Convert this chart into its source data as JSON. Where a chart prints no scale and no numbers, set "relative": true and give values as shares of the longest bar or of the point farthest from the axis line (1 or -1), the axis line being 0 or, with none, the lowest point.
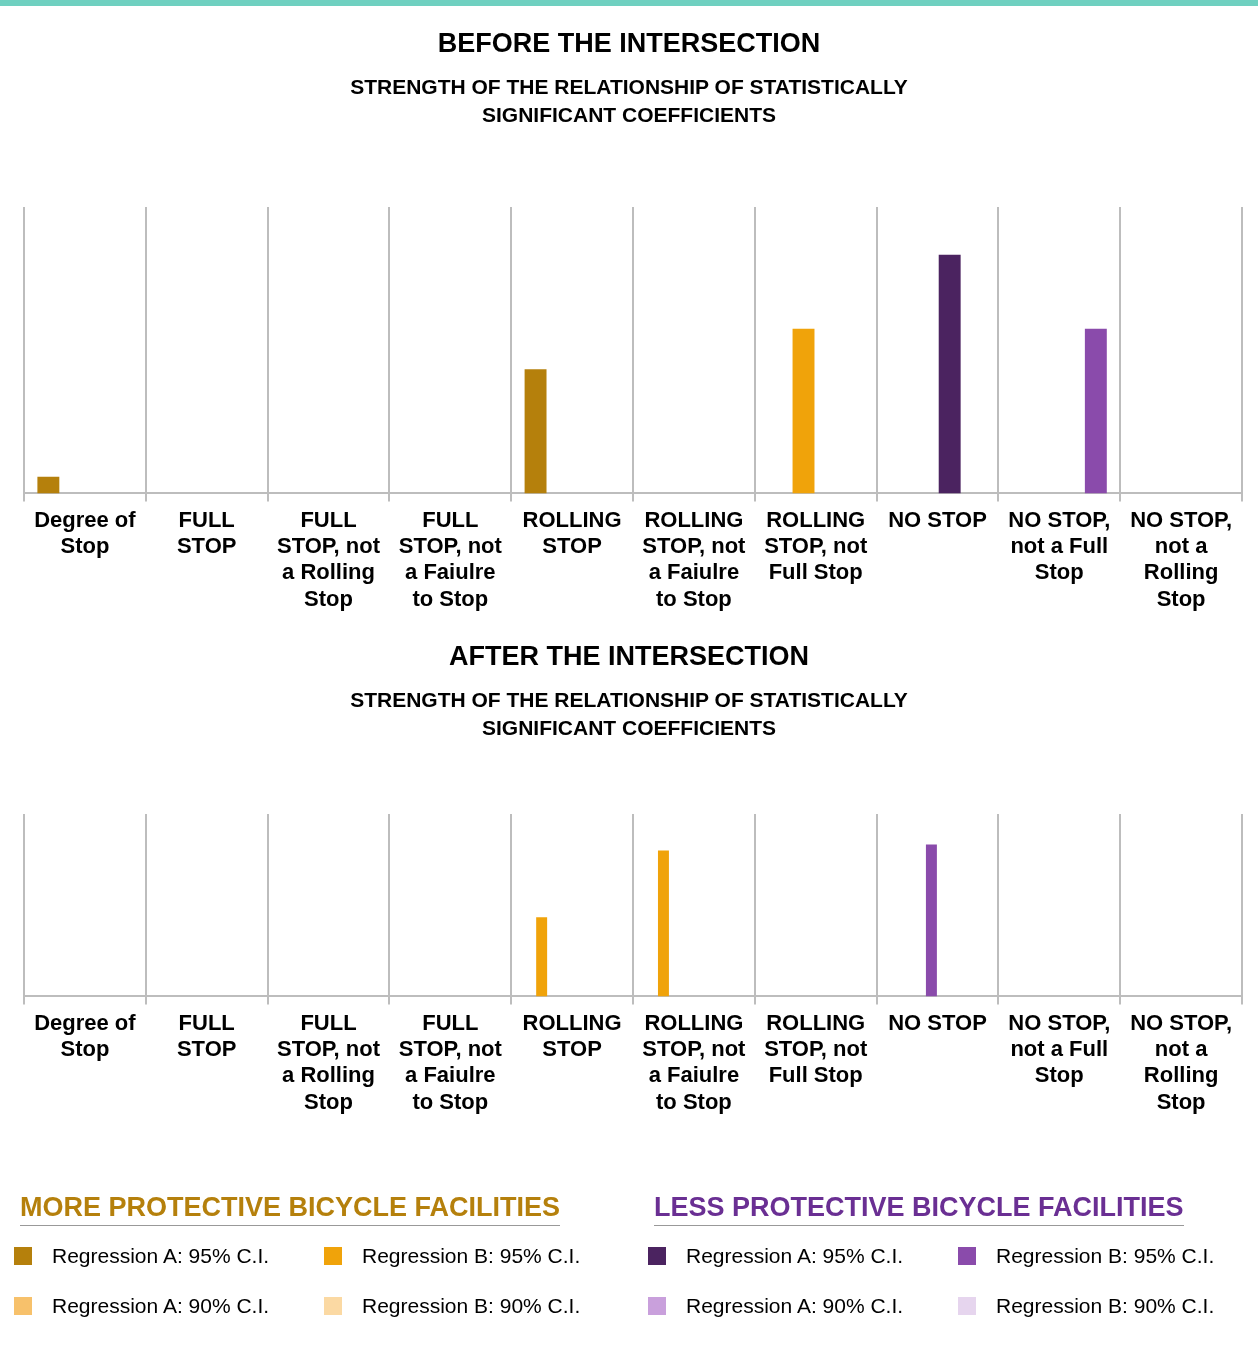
{
  "chart_data": [
    {
      "type": "bar",
      "title": "BEFORE THE INTERSECTION",
      "subtitle": "STRENGTH OF THE RELATIONSHIP OF STATISTICALLY SIGNIFICANT COEFFICIENTS",
      "relative": true,
      "grid": "x",
      "categories": [
        "Degree of Stop",
        "FULL STOP",
        "FULL STOP, not a Rolling Stop",
        "FULL STOP, not a Faiulre to Stop",
        "ROLLING STOP",
        "ROLLING STOP, not a Faiulre to Stop",
        "ROLLING STOP, not Full Stop",
        "NO STOP",
        "NO STOP, not a Full Stop",
        "NO STOP, not a Rolling Stop"
      ],
      "series": [
        {
          "color": "#b5800c",
          "values": [
            0.07,
            null,
            null,
            null,
            0.52,
            null,
            null,
            null,
            null,
            null
          ]
        },
        {
          "color": "#f0a30a",
          "values": [
            null,
            null,
            null,
            null,
            null,
            null,
            0.69,
            null,
            null,
            null
          ]
        },
        {
          "color": "#4b2360",
          "values": [
            null,
            null,
            null,
            null,
            null,
            null,
            null,
            1,
            null,
            null
          ]
        },
        {
          "color": "#8a4bab",
          "values": [
            null,
            null,
            null,
            null,
            null,
            null,
            null,
            null,
            0.69,
            null
          ]
        }
      ]
    },
    {
      "type": "bar",
      "title": "AFTER THE INTERSECTION",
      "subtitle": "STRENGTH OF THE RELATIONSHIP OF STATISTICALLY SIGNIFICANT COEFFICIENTS",
      "relative": true,
      "grid": "x",
      "legend": "bottom",
      "annotations": [
        "MORE PROTECTIVE BICYCLE FACILITIES",
        "LESS PROTECTIVE BICYCLE FACILITIES"
      ],
      "categories": [
        "Degree of Stop",
        "FULL STOP",
        "FULL STOP, not a Rolling Stop",
        "FULL STOP, not a Faiulre to Stop",
        "ROLLING STOP",
        "ROLLING STOP, not a Faiulre to Stop",
        "ROLLING STOP, not Full Stop",
        "NO STOP",
        "NO STOP, not a Full Stop",
        "NO STOP, not a Rolling Stop"
      ],
      "series": [
        {
          "name": "Regression A: 95% C.I.",
          "color": "#b5800c",
          "values": [
            null,
            null,
            null,
            null,
            null,
            null,
            null,
            null,
            null,
            null
          ]
        },
        {
          "name": "Regression B: 95% C.I.",
          "color": "#f0a30a",
          "values": [
            null,
            null,
            null,
            null,
            0.52,
            0.96,
            null,
            null,
            null,
            null
          ]
        },
        {
          "name": "Regression A: 95% C.I.",
          "color": "#4b2360",
          "values": [
            null,
            null,
            null,
            null,
            null,
            null,
            null,
            null,
            null,
            null
          ]
        },
        {
          "name": "Regression B: 95% C.I.",
          "color": "#8a4bab",
          "values": [
            null,
            null,
            null,
            null,
            null,
            null,
            null,
            1,
            null,
            null
          ]
        },
        {
          "name": "Regression A: 90% C.I.",
          "color": "#f7c16b",
          "values": [
            null,
            null,
            null,
            null,
            null,
            null,
            null,
            null,
            null,
            null
          ]
        },
        {
          "name": "Regression B: 90% C.I.",
          "color": "#fbd9a3",
          "values": [
            null,
            null,
            null,
            null,
            null,
            null,
            null,
            null,
            null,
            null
          ]
        },
        {
          "name": "Regression A: 90% C.I.",
          "color": "#c9a0dc",
          "values": [
            null,
            null,
            null,
            null,
            null,
            null,
            null,
            null,
            null,
            null
          ]
        },
        {
          "name": "Regression B: 90% C.I.",
          "color": "#e6d5ee",
          "values": [
            null,
            null,
            null,
            null,
            null,
            null,
            null,
            null,
            null,
            null
          ]
        }
      ]
    }
  ]
}
